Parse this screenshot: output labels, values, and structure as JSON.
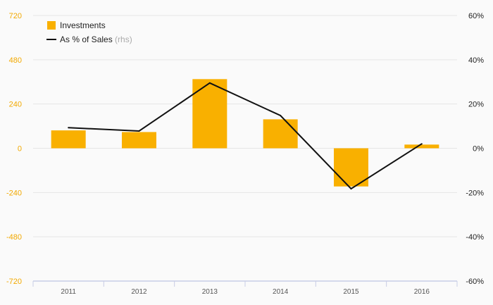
{
  "chart_data": {
    "type": "bar+line",
    "categories": [
      "2011",
      "2012",
      "2013",
      "2014",
      "2015",
      "2016"
    ],
    "series": [
      {
        "name": "Investments",
        "type": "bar",
        "axis": "left",
        "values": [
          97,
          88,
          375,
          157,
          -207,
          20
        ]
      },
      {
        "name": "As % of Sales",
        "name_suffix": "(rhs)",
        "type": "line",
        "axis": "right",
        "values": [
          9.3,
          7.8,
          29.5,
          14.8,
          -18.3,
          2.0
        ]
      }
    ],
    "left_axis": {
      "ylim": [
        -720,
        720
      ],
      "ticks": [
        "720",
        "480",
        "240",
        "0",
        "-240",
        "-480",
        "-720"
      ]
    },
    "right_axis": {
      "ylim": [
        -60,
        60
      ],
      "ticks": [
        "60%",
        "40%",
        "20%",
        "0%",
        "-20%",
        "-40%",
        "-60%"
      ]
    },
    "grid": true,
    "legend": "top-left",
    "colors": {
      "bar": "#f9b000",
      "line": "#111111",
      "left_tick": "#f2a900",
      "grid": "#e6e6e6",
      "x_axis": "#c8cde6"
    }
  }
}
